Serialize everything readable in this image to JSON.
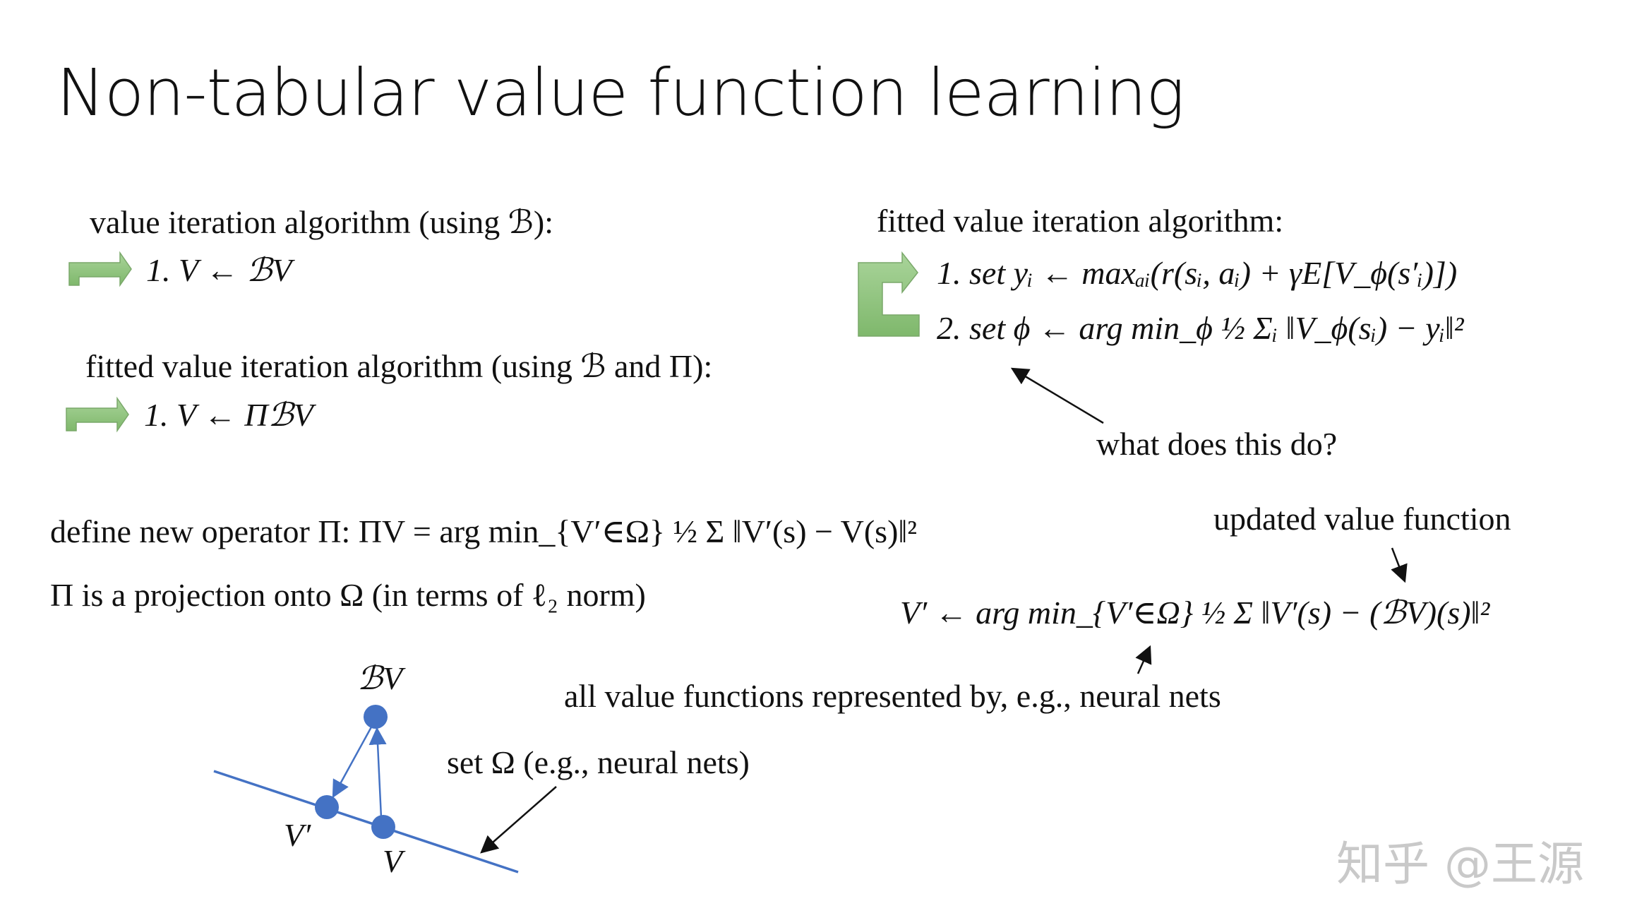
{
  "title": "Non-tabular value function learning",
  "left": {
    "vi_heading": "value iteration algorithm (using ℬ):",
    "vi_step": "1.  V ← ℬV",
    "fvi_heading": "fitted value iteration algorithm (using ℬ and Π):",
    "fvi_step": "1.  V ← ΠℬV"
  },
  "right": {
    "heading": "fitted value iteration algorithm:",
    "step1": "1.  set yᵢ ← maxₐᵢ(r(sᵢ, aᵢ) + γE[V_ϕ(s′ᵢ)])",
    "step2": "2.  set ϕ ← arg min_ϕ ½ Σᵢ ‖V_ϕ(sᵢ) − yᵢ‖²",
    "question": "what does this do?"
  },
  "operator": {
    "definition": "define new operator Π:  ΠV = arg min_{V′∈Ω} ½ Σ ‖V′(s) − V(s)‖²",
    "projection": "Π is a projection onto Ω (in terms of ℓ₂ norm)",
    "updated_label": "updated value function",
    "update_rule": "V′ ← arg min_{V′∈Ω} ½ Σ ‖V′(s) − (ℬV)(s)‖²",
    "all_functions": "all value functions represented by, e.g., neural nets"
  },
  "diagram": {
    "bv_label": "ℬV",
    "vprime_label": "V′",
    "v_label": "V",
    "set_label": "set Ω (e.g., neural nets)",
    "point_color": "#4472c4",
    "line_color": "#4472c4"
  },
  "loop_arrow_color": "#8fc47f",
  "watermark": "知乎 @王源"
}
